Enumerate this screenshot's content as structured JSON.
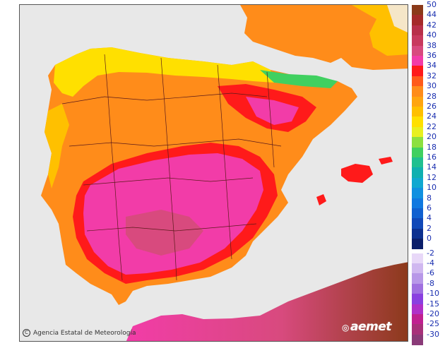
{
  "map": {
    "type": "temperature-map",
    "region": "Peninsula Iberica y Baleares",
    "colors": {
      "sea": "#e8e8e8",
      "land_outside": "#f4f4f4",
      "border": "#5a1a1a"
    }
  },
  "legend": {
    "positive": [
      {
        "label": "50",
        "color": "#8b3a1a"
      },
      {
        "label": "44",
        "color": "#a52a2a"
      },
      {
        "label": "42",
        "color": "#b8304a"
      },
      {
        "label": "40",
        "color": "#c83a5e"
      },
      {
        "label": "38",
        "color": "#d84a7e"
      },
      {
        "label": "36",
        "color": "#f23ca8"
      },
      {
        "label": "34",
        "color": "#ff1a1a"
      },
      {
        "label": "32",
        "color": "#ff5a1a"
      },
      {
        "label": "30",
        "color": "#ff8c1a"
      },
      {
        "label": "28",
        "color": "#ffa510"
      },
      {
        "label": "26",
        "color": "#ffc000"
      },
      {
        "label": "24",
        "color": "#ffe000"
      },
      {
        "label": "22",
        "color": "#e8f020"
      },
      {
        "label": "20",
        "color": "#8ce040"
      },
      {
        "label": "18",
        "color": "#40d060"
      },
      {
        "label": "16",
        "color": "#20c090"
      },
      {
        "label": "14",
        "color": "#10b0b0"
      },
      {
        "label": "12",
        "color": "#10a8d0"
      },
      {
        "label": "10",
        "color": "#1090e0"
      },
      {
        "label": "8",
        "color": "#1078e0"
      },
      {
        "label": "6",
        "color": "#1060d0"
      },
      {
        "label": "4",
        "color": "#1048b8"
      },
      {
        "label": "2",
        "color": "#0c3090"
      },
      {
        "label": "0",
        "color": "#0a1e6a"
      }
    ],
    "negative": [
      {
        "label": "-2",
        "color": "#e8d8f8"
      },
      {
        "label": "-4",
        "color": "#d0b8f0"
      },
      {
        "label": "-6",
        "color": "#b898e8"
      },
      {
        "label": "-8",
        "color": "#a070e0"
      },
      {
        "label": "-10",
        "color": "#8a40e0"
      },
      {
        "label": "-15",
        "color": "#b030c8"
      },
      {
        "label": "-20",
        "color": "#c02090"
      },
      {
        "label": "-25",
        "color": "#a8307a"
      },
      {
        "label": "-30",
        "color": "#8a3a78"
      }
    ]
  },
  "credit": {
    "text": "Agencia Estatal de Meteorología",
    "symbol": "C"
  },
  "logo": {
    "text": "aemet",
    "symbol": "◎"
  }
}
